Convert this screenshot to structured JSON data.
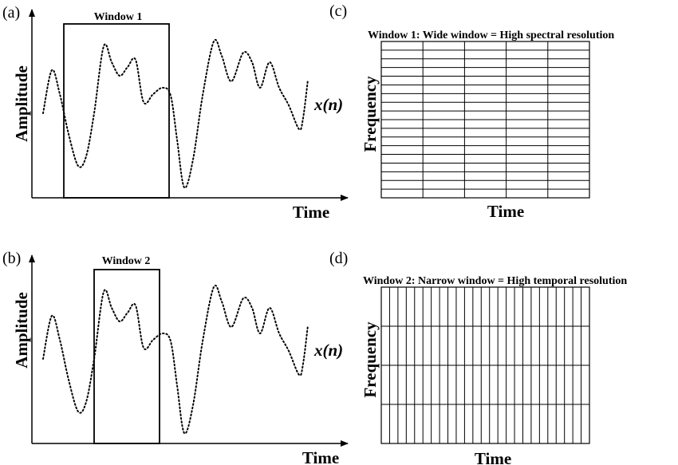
{
  "panels": {
    "a": {
      "label": "(a)",
      "ylabel": "Amplitude",
      "xlabel": "Time",
      "window_label": "Window 1",
      "signal_label": "x(n)"
    },
    "b": {
      "label": "(b)",
      "ylabel": "Amplitude",
      "xlabel": "Time",
      "window_label": "Window 2",
      "signal_label": "x(n)"
    },
    "c": {
      "label": "(c)",
      "title": "Window 1: Wide window = High spectral resolution",
      "ylabel": "Frequency",
      "xlabel": "Time",
      "grid_columns": 5,
      "grid_rows": 18
    },
    "d": {
      "label": "(d)",
      "title": "Window 2: Narrow window = High temporal resolution",
      "ylabel": "Frequency",
      "xlabel": "Time",
      "grid_columns": 25,
      "grid_rows": 4
    }
  }
}
